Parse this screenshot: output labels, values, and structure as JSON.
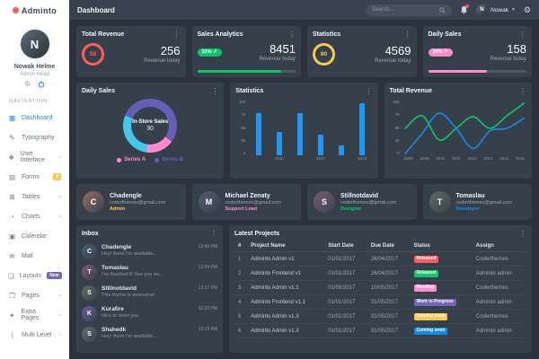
{
  "topbar": {
    "title": "Dashboard",
    "search_placeholder": "Search...",
    "user_name": "Nowak"
  },
  "sidebar": {
    "logo": "Adminto",
    "user": {
      "name": "Nowak Helme",
      "role": "Admin Head",
      "initial": "N"
    },
    "section_label": "NAVIGATION",
    "items": [
      {
        "label": "Dashboard",
        "icon": "dashboard-icon",
        "glyph": "▦",
        "active": true
      },
      {
        "label": "Typography",
        "icon": "typography-icon",
        "glyph": "✎"
      },
      {
        "label": "User Interface",
        "icon": "user-interface-icon",
        "glyph": "❖",
        "chevron": true
      },
      {
        "label": "Forms",
        "icon": "forms-icon",
        "glyph": "▤",
        "badge": "9",
        "badge_color": "#f9c851"
      },
      {
        "label": "Tables",
        "icon": "tables-icon",
        "glyph": "⊞",
        "chevron": true
      },
      {
        "label": "Charts",
        "icon": "charts-icon",
        "glyph": "◔",
        "chevron": true
      },
      {
        "label": "Calendar",
        "icon": "calendar-icon",
        "glyph": "▣"
      },
      {
        "label": "Mail",
        "icon": "mail-icon",
        "glyph": "✉"
      },
      {
        "label": "Layouts",
        "icon": "layouts-icon",
        "glyph": "❏",
        "badge": "New",
        "badge_color": "#7266ba"
      },
      {
        "label": "Pages",
        "icon": "pages-icon",
        "glyph": "❐",
        "chevron": true
      },
      {
        "label": "Extra Pages",
        "icon": "extra-pages-icon",
        "glyph": "✦",
        "chevron": true
      },
      {
        "label": "Multi Level",
        "icon": "multi-level-icon",
        "glyph": "⟨",
        "chevron": true
      }
    ]
  },
  "stat_cards": [
    {
      "title": "Total Revenue",
      "style": "ring",
      "ring_value": "58",
      "color": "#ff5b5b",
      "value": "256",
      "subtitle": "Revenue today"
    },
    {
      "title": "Sales Analytics",
      "style": "progress",
      "badge": "32%",
      "trend_icon": "↗",
      "color": "#10c469",
      "value": "8451",
      "subtitle": "Revenue today",
      "progress_pct": 85
    },
    {
      "title": "Statistics",
      "style": "ring",
      "ring_value": "80",
      "color": "#f9c851",
      "value": "4569",
      "subtitle": "Revenue today"
    },
    {
      "title": "Daily Sales",
      "style": "progress",
      "badge": "30%",
      "trend_icon": "↗",
      "color": "#ff8acc",
      "value": "158",
      "subtitle": "Revenue today",
      "progress_pct": 60
    }
  ],
  "chart_data": [
    {
      "type": "donut",
      "title": "Daily Sales",
      "center_title": "In-Store Sales",
      "center_value": "30",
      "start_angle": 292,
      "segments": [
        {
          "value": 54,
          "color": "#675fb5"
        },
        {
          "value": 17,
          "color": "#ff8acc"
        },
        {
          "value": 29,
          "color": "#45c7e8"
        }
      ],
      "legend": [
        {
          "label": "Series A",
          "color": "#ff8acc"
        },
        {
          "label": "Series B",
          "color": "#675fb5"
        }
      ],
      "legend_position": "bottom"
    },
    {
      "type": "bar",
      "title": "Statistics",
      "categories": [
        "",
        "2011",
        "",
        "2012",
        "",
        "2013"
      ],
      "values": [
        75,
        42,
        75,
        37,
        18,
        93
      ],
      "yticks": [
        100,
        75,
        50,
        25,
        0
      ],
      "ylim": [
        0,
        100
      ],
      "bar_color": "#2196f3",
      "grid": false
    },
    {
      "type": "line",
      "title": "Total Revenue",
      "x": [
        "2008",
        "2009",
        "2010",
        "2011",
        "2012",
        "2013",
        "2014",
        "2015"
      ],
      "yticks": [
        100,
        75,
        50,
        25,
        0
      ],
      "ylim": [
        0,
        100
      ],
      "series": [
        {
          "name": "series-green",
          "color": "#10c469",
          "values": [
            50,
            75,
            27,
            50,
            73,
            50,
            75,
            100
          ]
        },
        {
          "name": "series-blue",
          "color": "#188ae2",
          "values": [
            0,
            40,
            80,
            50,
            10,
            45,
            50,
            70
          ]
        }
      ],
      "grid": false
    }
  ],
  "members": [
    {
      "name": "Chadengle",
      "email": "coderthemes@gmail.com",
      "role": "Admin",
      "role_color": "#f9c851",
      "initial": "C"
    },
    {
      "name": "Michael Zenaty",
      "email": "coderthemes@gmail.com",
      "role": "Support Lead",
      "role_color": "#ff8acc",
      "initial": "M"
    },
    {
      "name": "Stillnotdavid",
      "email": "coderthemes@gmail.com",
      "role": "Designer",
      "role_color": "#10c469",
      "initial": "S"
    },
    {
      "name": "Tomaslau",
      "email": "coderthemes@gmail.com",
      "role": "Developer",
      "role_color": "#188ae2",
      "initial": "T"
    }
  ],
  "inbox": {
    "title": "Inbox",
    "messages": [
      {
        "name": "Chadengle",
        "text": "Hey! there I'm available...",
        "time": "13:40 PM",
        "initial": "C"
      },
      {
        "name": "Tomaslau",
        "text": "I've finished it! See you so...",
        "time": "13:34 PM",
        "initial": "T"
      },
      {
        "name": "Stillnotdavid",
        "text": "This theme is awesome!",
        "time": "13:17 PM",
        "initial": "S"
      },
      {
        "name": "Kurafire",
        "text": "Nice to meet you",
        "time": "12:20 PM",
        "initial": "K"
      },
      {
        "name": "Shahedk",
        "text": "Hey! there I'm available...",
        "time": "10:15 AM",
        "initial": "S"
      }
    ]
  },
  "projects": {
    "title": "Latest Projects",
    "columns": [
      "#",
      "Project Name",
      "Start Date",
      "Due Date",
      "Status",
      "Assign"
    ],
    "rows": [
      {
        "id": "1",
        "name": "Adminto Admin v1",
        "start": "01/01/2017",
        "due": "26/04/2017",
        "status": "Released",
        "status_color": "#ff5b5b",
        "assign": "Coderthemes"
      },
      {
        "id": "2",
        "name": "Adminto Frontend v1",
        "start": "01/01/2017",
        "due": "26/04/2017",
        "status": "Released",
        "status_color": "#10c469",
        "assign": "Adminto admin"
      },
      {
        "id": "3",
        "name": "Adminto Admin v1.1",
        "start": "01/05/2017",
        "due": "10/05/2017",
        "status": "Pending",
        "status_color": "#ff8acc",
        "assign": "Coderthemes"
      },
      {
        "id": "4",
        "name": "Adminto Frontend v1.1",
        "start": "01/01/2017",
        "due": "31/05/2017",
        "status": "Work in Progress",
        "status_color": "#7266ba",
        "assign": "Adminto admin"
      },
      {
        "id": "5",
        "name": "Adminto Admin v1.3",
        "start": "01/01/2017",
        "due": "31/05/2017",
        "status": "Coming soon",
        "status_color": "#f9c851",
        "assign": "Coderthemes"
      },
      {
        "id": "6",
        "name": "Adminto Admin v1.3",
        "start": "01/01/2017",
        "due": "31/05/2017",
        "status": "Coming soon",
        "status_color": "#188ae2",
        "assign": "Adminto admin"
      }
    ]
  },
  "colors": {
    "accent": "#188ae2",
    "page_bg": "#2b323b",
    "topbar_bg": "#39424e",
    "card_bg": "#36404a",
    "sidebar_bg": "#ffffff",
    "muted": "#98a6ad",
    "red": "#ff5b5b",
    "green": "#10c469",
    "yellow": "#f9c851",
    "pink": "#ff8acc",
    "purple": "#7266ba",
    "bar_blue": "#2196f3",
    "notification_dot": "#ff5b5b",
    "logo_mark": "#ff5b5b"
  }
}
